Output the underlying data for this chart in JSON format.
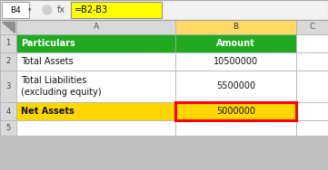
{
  "formula_bar_cell": "B4",
  "formula_bar_formula": "=B2-B3",
  "col_headers": [
    "A",
    "B",
    "C"
  ],
  "row_numbers": [
    "1",
    "2",
    "3",
    "4",
    "5"
  ],
  "header_row": [
    "Particulars",
    "Amount"
  ],
  "row2_A": "Total Assets",
  "row2_B": "10500000",
  "row3_A_line1": "Total Liabilities",
  "row3_A_line2": "(excluding equity)",
  "row3_B": "5500000",
  "row4_A": "Net Assets",
  "row4_B": "5000000",
  "color_green_header": "#1faa1f",
  "color_green_header_text": "#ffffff",
  "color_yellow_formula": "#ffff00",
  "color_yellow_row4": "#ffd700",
  "color_yellow_col_b": "#ffd966",
  "color_red_border": "#ff0000",
  "color_white": "#ffffff",
  "color_gray_header": "#d9d9d9",
  "color_grid": "#c0c0c0",
  "color_bg": "#c0c0c0",
  "color_formula_bg": "#f2f2f2"
}
